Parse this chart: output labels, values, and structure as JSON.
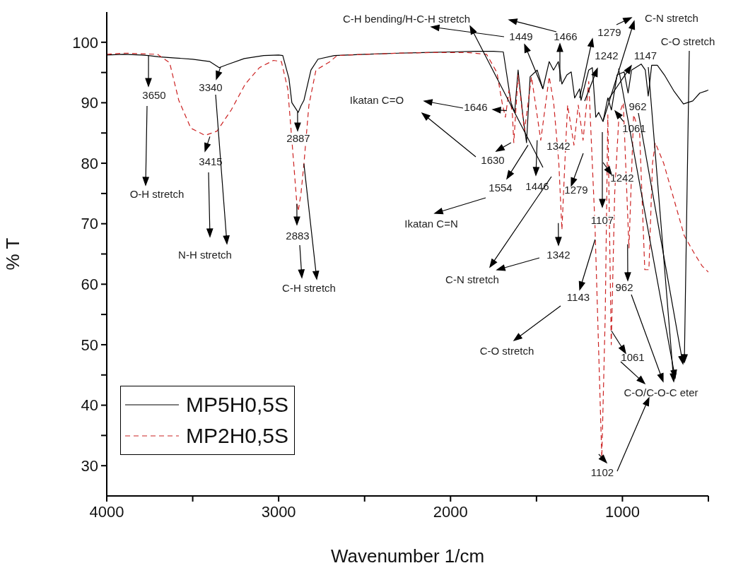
{
  "chart_data": {
    "type": "line",
    "xlabel": "Wavenumber 1/cm",
    "ylabel": "% T",
    "xlim": [
      4000,
      500
    ],
    "ylim": [
      25,
      105
    ],
    "xticks": [
      4000,
      {
        "value": 3500,
        "label": null
      },
      3000,
      {
        "value": 2500,
        "label": null
      },
      2000,
      {
        "value": 1500,
        "label": null
      },
      1000,
      {
        "value": 500,
        "label": null
      }
    ],
    "yticks": [
      30,
      {
        "value": 35,
        "label": null
      },
      40,
      {
        "value": 45,
        "label": null
      },
      50,
      {
        "value": 55,
        "label": null
      },
      60,
      {
        "value": 65,
        "label": null
      },
      70,
      {
        "value": 75,
        "label": null
      },
      80,
      {
        "value": 85,
        "label": null
      },
      90,
      {
        "value": 95,
        "label": null
      },
      100
    ],
    "legend": "bottom left",
    "series": [
      {
        "name": "MP5H0,5S",
        "color": "#000000",
        "line_style": "solid",
        "x": [
          4000,
          3900,
          3800,
          3757,
          3700,
          3600,
          3500,
          3400,
          3346,
          3300,
          3200,
          3087,
          3000,
          2976,
          2940,
          2923,
          2886,
          2870,
          2853,
          2812,
          2771,
          2676,
          2500,
          2300,
          2154,
          2000,
          1850,
          1750,
          1693,
          1648,
          1627,
          1607,
          1578,
          1558,
          1537,
          1496,
          1463,
          1426,
          1401,
          1373,
          1352,
          1323,
          1298,
          1278,
          1249,
          1241,
          1196,
          1175,
          1155,
          1138,
          1113,
          1085,
          1064,
          1031,
          990,
          967,
          947,
          891,
          867,
          850,
          830,
          797,
          756,
          702,
          645,
          591,
          550,
          509,
          500
        ],
        "values": [
          97.9,
          98,
          97.9,
          97.8,
          97.6,
          97.4,
          97.2,
          96.8,
          95.8,
          96.3,
          97.3,
          97.8,
          97.9,
          97.8,
          94,
          90,
          88.4,
          89.5,
          90.4,
          95.4,
          97.2,
          97.8,
          98,
          98.2,
          98.3,
          98.4,
          98.5,
          98.5,
          98.4,
          90,
          88.4,
          95.4,
          87.6,
          83.4,
          94.3,
          95.4,
          92.3,
          96.8,
          95.4,
          96.8,
          93.1,
          94.6,
          95.1,
          90.8,
          92.3,
          90.4,
          95.4,
          95.8,
          87.6,
          88.4,
          86.9,
          90.8,
          88.8,
          94.6,
          95.1,
          91.6,
          95.4,
          96.4,
          95.4,
          91.1,
          96.2,
          96.2,
          94.6,
          92,
          89.8,
          90.3,
          91.6,
          92,
          92.1
        ]
      },
      {
        "name": "MP2H0,5S",
        "color": "#cc2222",
        "line_style": "dashed",
        "x": [
          4000,
          3900,
          3800,
          3704,
          3634,
          3581,
          3511,
          3428,
          3359,
          3276,
          3194,
          3112,
          3030,
          2984,
          2947,
          2923,
          2894,
          2886,
          2870,
          2853,
          2824,
          2783,
          2701,
          2660,
          2500,
          2300,
          2100,
          1900,
          1790,
          1730,
          1700,
          1681,
          1660,
          1640,
          1632,
          1607,
          1570,
          1529,
          1475,
          1426,
          1400,
          1370,
          1352,
          1335,
          1319,
          1282,
          1257,
          1229,
          1196,
          1160,
          1120,
          1100,
          1085,
          1065,
          1045,
          1020,
          995,
          962,
          935,
          900,
          870,
          846,
          825,
          809,
          760,
          700,
          640,
          580,
          536,
          500
        ],
        "values": [
          98,
          98.2,
          98.1,
          98,
          96.6,
          90.4,
          85.8,
          84.6,
          85.3,
          88.8,
          93.1,
          95.8,
          97,
          96.8,
          92.3,
          83.8,
          73.3,
          72.1,
          75,
          79.9,
          89.6,
          95.4,
          96.8,
          97.8,
          98,
          98.2,
          98.3,
          98.3,
          98,
          95,
          90,
          87.6,
          92,
          88,
          83.4,
          94.6,
          85.3,
          94.3,
          83.8,
          94.3,
          90,
          80,
          69,
          80,
          89.6,
          83,
          89.6,
          83.8,
          93.5,
          70,
          31.3,
          55,
          88,
          50,
          75,
          88,
          90,
          66,
          88,
          85,
          62.4,
          62.4,
          80,
          83.4,
          80,
          74,
          68,
          65,
          63,
          62
        ]
      }
    ],
    "annotations": [
      {
        "text": "3650",
        "x": 3757,
        "y": 97.8
      },
      "O-H stretch",
      {
        "text": "3340",
        "x": 3338,
        "y": 95.9
      },
      {
        "text": "3415",
        "x": 3400,
        "y": 84.4
      },
      "N-H stretch",
      {
        "text": "2887",
        "x": 2890,
        "y": 88.5
      },
      {
        "text": "2883",
        "x": 2894,
        "y": 73.3
      },
      {
        "text": "C-H stretch",
        "x": 2853,
        "y": 79.9
      },
      "Ikatan C=O",
      "C-H bending/H-C-H stretch",
      {
        "text": "1449",
        "x": 1463,
        "y": 92.3
      },
      {
        "text": "1466",
        "x": 1364,
        "y": 93.5
      },
      {
        "text": "1279",
        "x": 1249,
        "y": 90.8
      },
      {
        "text": "C-N stretch",
        "x": 1113,
        "y": 86.9
      },
      "C-O stretch",
      "1242",
      {
        "text": "1147",
        "x": 1085,
        "y": 90.4
      },
      {
        "text": "1646",
        "x": 1673,
        "y": 88.7
      },
      "962",
      {
        "text": "1630",
        "x": 1648,
        "y": 83.4
      },
      "1342",
      {
        "text": "1061",
        "x": 994,
        "y": 86.9
      },
      {
        "text": "1554",
        "x": 1549,
        "y": 83
      },
      {
        "text": "1446",
        "x": 1496,
        "y": 83.8
      },
      "1279",
      "1242",
      "Ikatan C=N",
      "1107",
      {
        "text": "1342",
        "x": 1373,
        "y": 70.1
      },
      "C-N stretch",
      {
        "text": "1143",
        "x": 1159,
        "y": 67.4
      },
      "C-O stretch",
      {
        "text": "962",
        "x": 970,
        "y": 66.6
      },
      {
        "text": "1061",
        "x": 1064,
        "y": 52.3
      },
      "C-O/C-O-C eter",
      {
        "text": "1102",
        "x": 1138,
        "y": 31.9
      }
    ]
  }
}
